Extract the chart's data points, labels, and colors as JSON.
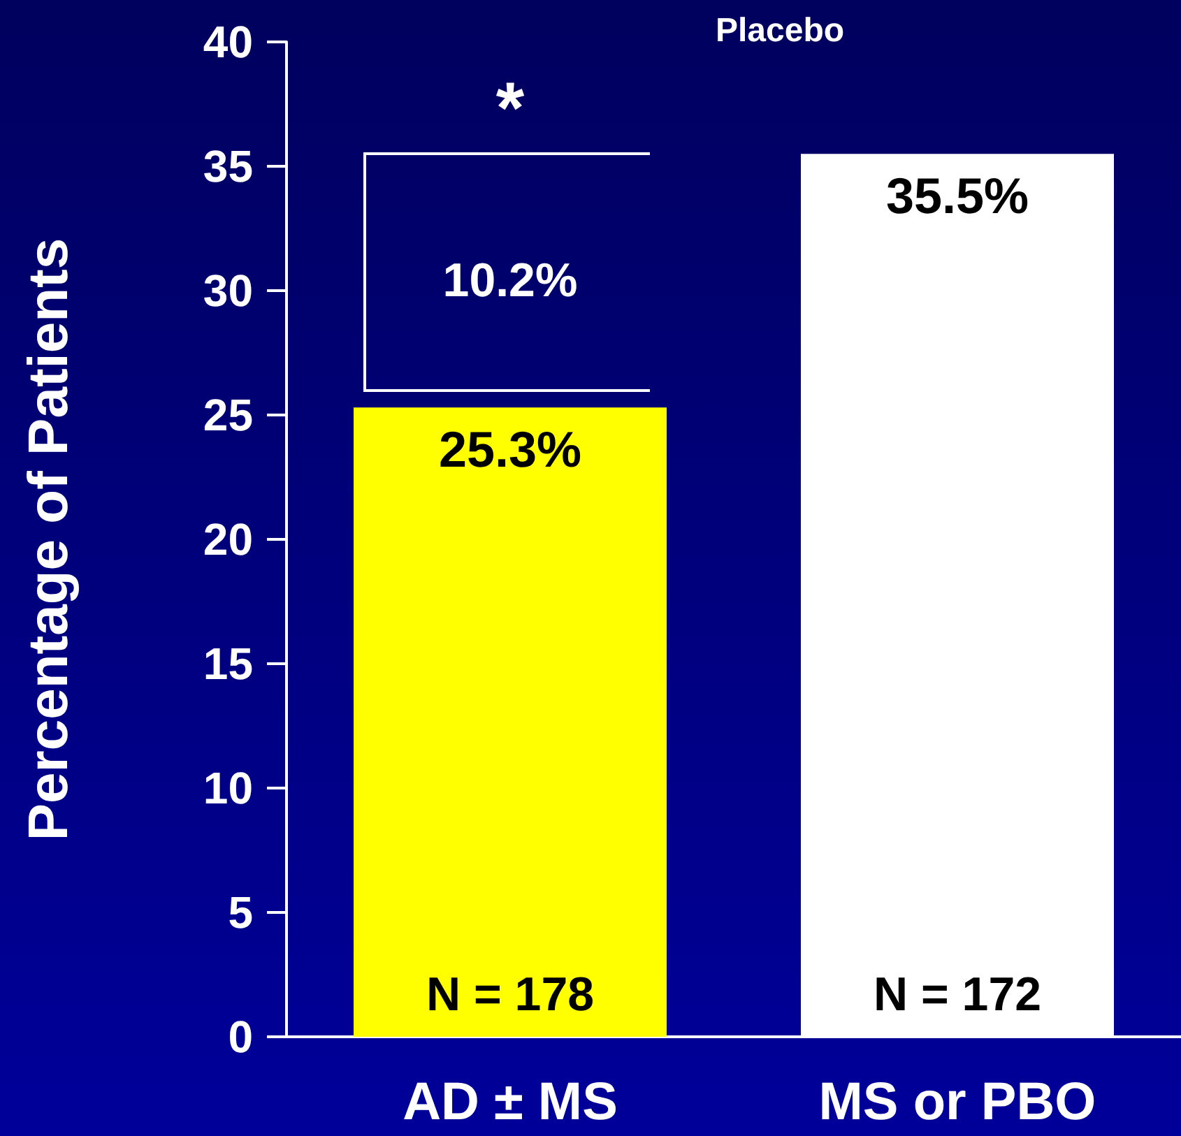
{
  "chart_data": {
    "type": "bar",
    "ylabel": "Percentage of Patients",
    "categories": [
      "AD ± MS",
      "MS or PBO"
    ],
    "values": [
      25.3,
      35.5
    ],
    "colors": [
      "#ffff00",
      "#ffffff"
    ],
    "value_labels": [
      "25.3%",
      "35.5%"
    ],
    "ylim": [
      0,
      40
    ],
    "yticks": [
      0,
      5,
      10,
      15,
      20,
      25,
      30,
      35,
      40
    ],
    "grid": false,
    "annotations": [
      "Placebo",
      "*",
      "10.2%",
      "N = 178",
      "N = 172"
    ]
  }
}
